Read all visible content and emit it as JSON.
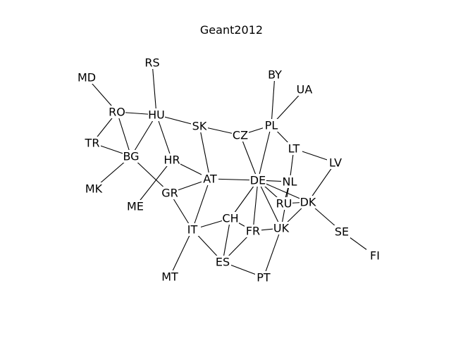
{
  "title": "Geant2012",
  "nodes": [
    {
      "id": "MD"
    },
    {
      "id": "RS"
    },
    {
      "id": "BY"
    },
    {
      "id": "UA"
    },
    {
      "id": "RO"
    },
    {
      "id": "HU"
    },
    {
      "id": "SK"
    },
    {
      "id": "CZ"
    },
    {
      "id": "PL"
    },
    {
      "id": "TR"
    },
    {
      "id": "BG"
    },
    {
      "id": "HR"
    },
    {
      "id": "LT"
    },
    {
      "id": "LV"
    },
    {
      "id": "MK"
    },
    {
      "id": "GR"
    },
    {
      "id": "AT"
    },
    {
      "id": "DE"
    },
    {
      "id": "NL"
    },
    {
      "id": "ME"
    },
    {
      "id": "RU"
    },
    {
      "id": "DK"
    },
    {
      "id": "CH"
    },
    {
      "id": "IT"
    },
    {
      "id": "FR"
    },
    {
      "id": "UK"
    },
    {
      "id": "SE"
    },
    {
      "id": "FI"
    },
    {
      "id": "ES"
    },
    {
      "id": "MT"
    },
    {
      "id": "PT"
    }
  ],
  "edges": [
    [
      "MD",
      "RO"
    ],
    [
      "RO",
      "HU"
    ],
    [
      "RO",
      "TR"
    ],
    [
      "RO",
      "BG"
    ],
    [
      "RS",
      "HU"
    ],
    [
      "HU",
      "BG"
    ],
    [
      "HU",
      "HR"
    ],
    [
      "HU",
      "SK"
    ],
    [
      "TR",
      "BG"
    ],
    [
      "BG",
      "MK"
    ],
    [
      "BG",
      "GR"
    ],
    [
      "HR",
      "AT"
    ],
    [
      "HR",
      "ME"
    ],
    [
      "SK",
      "CZ"
    ],
    [
      "SK",
      "AT"
    ],
    [
      "CZ",
      "PL"
    ],
    [
      "CZ",
      "DE"
    ],
    [
      "PL",
      "BY"
    ],
    [
      "PL",
      "UA"
    ],
    [
      "PL",
      "LT"
    ],
    [
      "PL",
      "DE"
    ],
    [
      "LT",
      "LV"
    ],
    [
      "LT",
      "NL"
    ],
    [
      "LV",
      "DK"
    ],
    [
      "GR",
      "AT"
    ],
    [
      "GR",
      "IT"
    ],
    [
      "AT",
      "DE"
    ],
    [
      "AT",
      "IT"
    ],
    [
      "DE",
      "NL"
    ],
    [
      "DE",
      "DK"
    ],
    [
      "DE",
      "RU"
    ],
    [
      "DE",
      "CH"
    ],
    [
      "DE",
      "FR"
    ],
    [
      "DE",
      "UK"
    ],
    [
      "NL",
      "UK"
    ],
    [
      "NL",
      "RU"
    ],
    [
      "RU",
      "DK"
    ],
    [
      "DK",
      "UK"
    ],
    [
      "DK",
      "SE"
    ],
    [
      "SE",
      "FI"
    ],
    [
      "IT",
      "CH"
    ],
    [
      "IT",
      "ES"
    ],
    [
      "IT",
      "MT"
    ],
    [
      "CH",
      "FR"
    ],
    [
      "CH",
      "ES"
    ],
    [
      "FR",
      "UK"
    ],
    [
      "FR",
      "ES"
    ],
    [
      "ES",
      "PT"
    ],
    [
      "UK",
      "PT"
    ]
  ]
}
